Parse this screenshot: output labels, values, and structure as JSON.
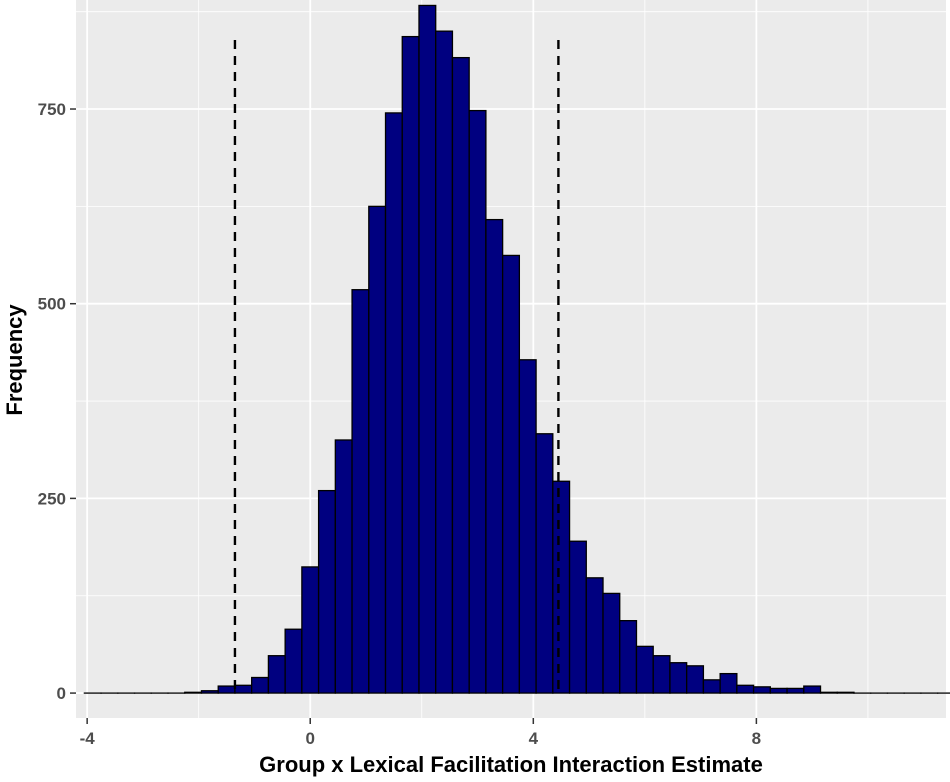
{
  "chart_data": {
    "type": "bar",
    "xlabel": "Group x Lexical Facilitation Interaction Estimate",
    "ylabel": "Frequency",
    "xlim": [
      -4.2,
      11.4
    ],
    "ylim": [
      -32,
      890
    ],
    "x_ticks": [
      -4,
      0,
      4,
      8
    ],
    "y_ticks": [
      0,
      250,
      500,
      750
    ],
    "x_tick_labels": [
      "-4",
      "0",
      "4",
      "8"
    ],
    "y_tick_labels": [
      "0",
      "250",
      "500",
      "750"
    ],
    "bin_width": 0.3,
    "bin_start": -4.05,
    "bin_counts": [
      0,
      0,
      0,
      0,
      0,
      0,
      1,
      3,
      9,
      10,
      20,
      48,
      82,
      162,
      260,
      325,
      518,
      625,
      745,
      843,
      883,
      850,
      816,
      748,
      608,
      562,
      428,
      333,
      272,
      195,
      148,
      128,
      93,
      60,
      48,
      39,
      35,
      17,
      25,
      10,
      8,
      6,
      6,
      9,
      1,
      1,
      0,
      0,
      0,
      0,
      0,
      0,
      0
    ],
    "dashed_lines_x": [
      -1.35,
      4.45
    ],
    "colors": {
      "bar_fill": "#000080",
      "bar_border": "#000000",
      "panel_background": "#ebebeb",
      "grid": "#ffffff",
      "dashed_line": "#000000"
    },
    "grid": true,
    "legend": "none"
  }
}
